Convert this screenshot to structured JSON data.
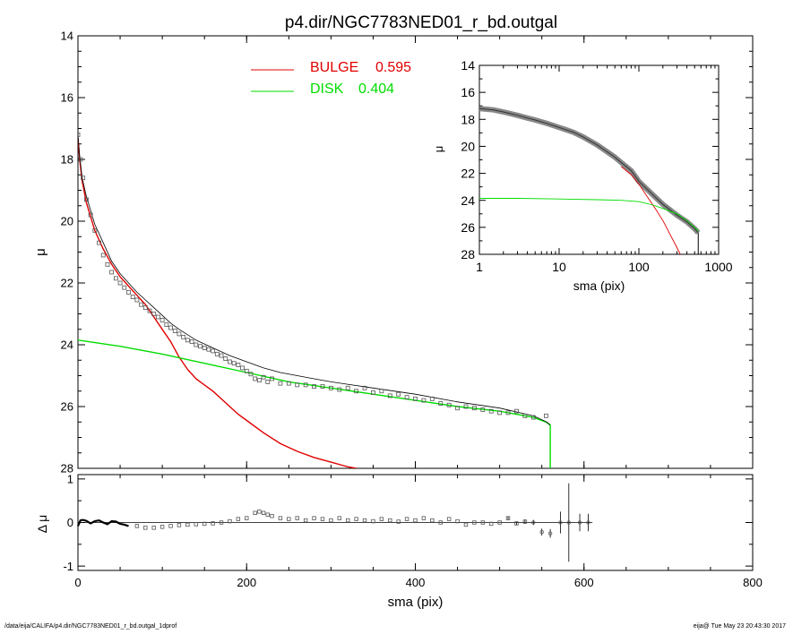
{
  "title": "p4.dir/NGC7783NED01_r_bd.outgal",
  "footer": {
    "left": "/data/eija/CALIFA/p4.dir/NGC7783NED01_r_bd.outgal_1dprof",
    "right": "eija@  Tue May 23 20:43:30 2017"
  },
  "colors": {
    "bulge": "#e00000",
    "disk": "#00dd00",
    "data": "#555555",
    "model": "#000000"
  },
  "chart_data": [
    {
      "name": "main-profile",
      "type": "line",
      "xlabel": "sma (pix)",
      "ylabel": "μ",
      "xlim": [
        0,
        800
      ],
      "ylim": [
        28,
        14
      ],
      "y_inverted": true,
      "xticks": [
        "0",
        "200",
        "400",
        "600",
        "800"
      ],
      "yticks": [
        "14",
        "16",
        "18",
        "20",
        "22",
        "24",
        "26",
        "28"
      ],
      "legend": [
        {
          "label": "BULGE",
          "value": "0.595",
          "color": "#e00000"
        },
        {
          "label": "DISK",
          "value": "0.404",
          "color": "#00dd00"
        }
      ],
      "series": [
        {
          "name": "BULGE",
          "color": "#e00000",
          "x": [
            0,
            2,
            5,
            10,
            20,
            30,
            40,
            50,
            60,
            70,
            80,
            90,
            100,
            110,
            120,
            130,
            140,
            150,
            160,
            170,
            180,
            190,
            200,
            220,
            240,
            260,
            280,
            300,
            320,
            330
          ],
          "y": [
            17.3,
            18.0,
            18.7,
            19.4,
            20.3,
            20.9,
            21.4,
            21.8,
            22.1,
            22.4,
            22.7,
            23.1,
            23.5,
            23.9,
            24.4,
            24.8,
            25.1,
            25.3,
            25.5,
            25.75,
            26.0,
            26.25,
            26.45,
            26.85,
            27.2,
            27.45,
            27.65,
            27.8,
            27.95,
            28.0
          ]
        },
        {
          "name": "DISK",
          "color": "#00dd00",
          "x": [
            0,
            50,
            100,
            150,
            200,
            250,
            300,
            350,
            400,
            450,
            500,
            540,
            555,
            560,
            560
          ],
          "y": [
            23.85,
            24.05,
            24.3,
            24.6,
            24.9,
            25.2,
            25.4,
            25.6,
            25.8,
            26.0,
            26.15,
            26.35,
            26.5,
            26.6,
            28.0
          ]
        },
        {
          "name": "model",
          "color": "#000000",
          "x": [
            0,
            2,
            5,
            10,
            20,
            30,
            40,
            50,
            60,
            70,
            80,
            90,
            100,
            110,
            120,
            140,
            160,
            180,
            200,
            220,
            240,
            260,
            280,
            300,
            350,
            400,
            450,
            500,
            540,
            556,
            560
          ],
          "y": [
            17.2,
            17.9,
            18.6,
            19.2,
            20.1,
            20.7,
            21.3,
            21.7,
            22.0,
            22.3,
            22.55,
            22.8,
            23.05,
            23.3,
            23.5,
            23.85,
            24.1,
            24.35,
            24.55,
            24.75,
            24.9,
            25.0,
            25.1,
            25.2,
            25.4,
            25.6,
            25.85,
            26.05,
            26.3,
            26.5,
            26.6
          ]
        },
        {
          "name": "data",
          "color": "#555555",
          "marker": "square",
          "x": [
            0,
            3,
            6,
            10,
            15,
            20,
            25,
            30,
            35,
            40,
            45,
            50,
            55,
            60,
            65,
            70,
            75,
            80,
            85,
            90,
            95,
            100,
            105,
            110,
            115,
            120,
            125,
            130,
            135,
            140,
            145,
            150,
            155,
            160,
            165,
            170,
            175,
            180,
            185,
            190,
            195,
            200,
            205,
            210,
            215,
            220,
            225,
            230,
            240,
            250,
            260,
            270,
            280,
            290,
            300,
            310,
            320,
            330,
            340,
            350,
            360,
            370,
            380,
            390,
            400,
            410,
            420,
            430,
            440,
            450,
            460,
            470,
            480,
            490,
            500,
            510,
            520,
            530,
            540,
            555
          ],
          "y": [
            17.2,
            18.0,
            18.6,
            19.3,
            19.8,
            20.3,
            20.7,
            21.1,
            21.4,
            21.65,
            21.85,
            22.0,
            22.15,
            22.3,
            22.45,
            22.55,
            22.7,
            22.8,
            22.9,
            23.0,
            23.1,
            23.2,
            23.35,
            23.45,
            23.55,
            23.65,
            23.75,
            23.85,
            23.9,
            24.0,
            24.05,
            24.1,
            24.15,
            24.2,
            24.3,
            24.35,
            24.45,
            24.55,
            24.6,
            24.65,
            24.75,
            24.85,
            24.95,
            25.1,
            25.15,
            25.05,
            25.2,
            25.1,
            25.25,
            25.25,
            25.3,
            25.3,
            25.35,
            25.35,
            25.4,
            25.45,
            25.4,
            25.5,
            25.4,
            25.55,
            25.5,
            25.65,
            25.6,
            25.7,
            25.75,
            25.8,
            25.75,
            25.9,
            25.95,
            26.05,
            26.0,
            26.05,
            26.1,
            26.15,
            26.2,
            26.2,
            26.15,
            26.3,
            26.35,
            26.3
          ]
        }
      ]
    },
    {
      "name": "inset-log-profile",
      "type": "line",
      "xlabel": "sma (pix)",
      "ylabel": "μ",
      "xscale": "log",
      "xlim": [
        1,
        1000
      ],
      "ylim": [
        28,
        14
      ],
      "y_inverted": true,
      "xticks": [
        "1",
        "10",
        "100",
        "1000"
      ],
      "yticks": [
        "14",
        "16",
        "18",
        "20",
        "22",
        "24",
        "26",
        "28"
      ],
      "series": [
        {
          "name": "data",
          "color": "#555555",
          "x": [
            1,
            1.5,
            2,
            3,
            4,
            5,
            7,
            10,
            15,
            20,
            30,
            40,
            50,
            60,
            80,
            100,
            150,
            200,
            300,
            400,
            500,
            555
          ],
          "y": [
            17.2,
            17.3,
            17.45,
            17.7,
            17.9,
            18.05,
            18.3,
            18.6,
            18.95,
            19.3,
            19.9,
            20.4,
            20.8,
            21.2,
            21.8,
            22.6,
            23.6,
            24.3,
            25.1,
            25.6,
            26.1,
            26.4
          ]
        },
        {
          "name": "BULGE",
          "color": "#e00000",
          "x": [
            60,
            80,
            100,
            130,
            160,
            200,
            250,
            300,
            330
          ],
          "y": [
            21.5,
            22.1,
            22.8,
            23.8,
            24.6,
            25.5,
            26.6,
            27.5,
            28.0
          ]
        },
        {
          "name": "DISK",
          "color": "#00dd00",
          "x": [
            1,
            3,
            10,
            30,
            60,
            100,
            150,
            200,
            300,
            400,
            500,
            560
          ],
          "y": [
            23.85,
            23.85,
            23.9,
            23.95,
            24.0,
            24.1,
            24.35,
            24.6,
            25.0,
            25.5,
            26.0,
            26.3
          ]
        }
      ]
    },
    {
      "name": "residual",
      "type": "scatter",
      "xlabel": "sma (pix)",
      "ylabel": "Δ μ",
      "xlim": [
        0,
        800
      ],
      "ylim": [
        -1.1,
        1.1
      ],
      "xticks": [
        "0",
        "200",
        "400",
        "600",
        "800"
      ],
      "yticks": [
        "1",
        "0",
        "-1"
      ],
      "x": [
        0,
        3,
        6,
        10,
        15,
        20,
        25,
        30,
        35,
        40,
        45,
        50,
        55,
        60,
        70,
        80,
        90,
        100,
        110,
        120,
        130,
        140,
        150,
        160,
        170,
        180,
        190,
        200,
        210,
        215,
        220,
        225,
        230,
        240,
        250,
        260,
        270,
        280,
        290,
        300,
        310,
        320,
        330,
        340,
        350,
        360,
        370,
        380,
        390,
        400,
        410,
        420,
        430,
        440,
        450,
        460,
        470,
        480,
        490,
        500,
        510,
        520,
        530,
        540,
        550,
        560,
        572,
        582,
        595,
        605
      ],
      "y": [
        -0.08,
        0.05,
        0.06,
        0.04,
        -0.02,
        0.03,
        0.05,
        0.0,
        -0.04,
        0.03,
        0.02,
        -0.03,
        -0.05,
        -0.08,
        -0.08,
        -0.12,
        -0.12,
        -0.1,
        -0.08,
        -0.06,
        -0.05,
        -0.04,
        -0.03,
        -0.02,
        0.0,
        0.03,
        0.08,
        0.1,
        0.22,
        0.25,
        0.22,
        0.18,
        0.15,
        0.1,
        0.08,
        0.1,
        0.05,
        0.1,
        0.08,
        0.05,
        0.1,
        0.05,
        0.08,
        0.05,
        0.03,
        0.08,
        0.05,
        0.02,
        0.08,
        0.05,
        0.1,
        0.05,
        0.0,
        0.08,
        0.03,
        -0.05,
        0.0,
        0.0,
        -0.03,
        0.0,
        0.1,
        -0.02,
        0.02,
        0.0,
        -0.22,
        -0.25,
        0.0,
        0.0,
        0.0,
        0.0
      ],
      "err": [
        0,
        0,
        0,
        0,
        0,
        0,
        0,
        0,
        0,
        0,
        0,
        0,
        0,
        0,
        0,
        0,
        0,
        0,
        0,
        0,
        0,
        0,
        0,
        0,
        0,
        0,
        0,
        0,
        0,
        0,
        0,
        0,
        0,
        0,
        0,
        0,
        0,
        0,
        0,
        0,
        0,
        0,
        0,
        0,
        0,
        0,
        0,
        0,
        0,
        0,
        0,
        0,
        0,
        0,
        0,
        0,
        0,
        0,
        0,
        0,
        0.04,
        0.04,
        0.05,
        0.06,
        0.08,
        0.1,
        0.25,
        0.9,
        0.2,
        0.2
      ]
    }
  ]
}
